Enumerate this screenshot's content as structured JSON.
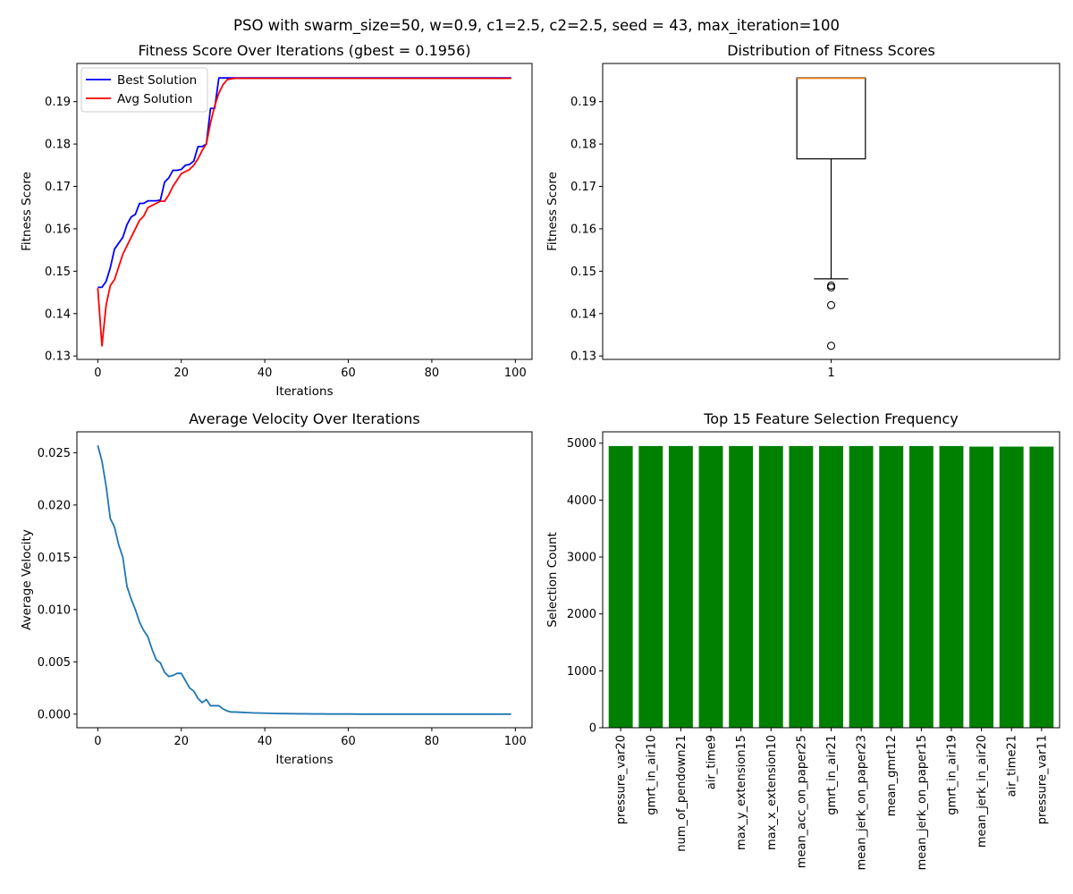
{
  "figure": {
    "suptitle": "PSO with swarm_size=50, w=0.9, c1=2.5, c2=2.5, seed = 43, max_iteration=100"
  },
  "chart_data": [
    {
      "id": "fitness",
      "type": "line",
      "title": "Fitness Score Over Iterations (gbest = 0.1956)",
      "xlabel": "Iterations",
      "ylabel": "Fitness Score",
      "xlim": [
        -5,
        104
      ],
      "ylim": [
        0.1292,
        0.199
      ],
      "xticks": [
        0,
        20,
        40,
        60,
        80,
        100
      ],
      "yticks": [
        0.13,
        0.14,
        0.15,
        0.16,
        0.17,
        0.18,
        0.19
      ],
      "tick_precision": 2,
      "grid": false,
      "legend": "top-left",
      "x": [
        0,
        1,
        2,
        3,
        4,
        5,
        6,
        7,
        8,
        9,
        10,
        11,
        12,
        13,
        14,
        15,
        16,
        17,
        18,
        19,
        20,
        21,
        22,
        23,
        24,
        25,
        26,
        27,
        28,
        29,
        30,
        31,
        32,
        33,
        34,
        35,
        36,
        37,
        38,
        39,
        40,
        41,
        42,
        43,
        44,
        45,
        46,
        47,
        48,
        49,
        50,
        51,
        52,
        53,
        54,
        55,
        56,
        57,
        58,
        59,
        60,
        61,
        62,
        63,
        64,
        65,
        66,
        67,
        68,
        69,
        70,
        71,
        72,
        73,
        74,
        75,
        76,
        77,
        78,
        79,
        80,
        81,
        82,
        83,
        84,
        85,
        86,
        87,
        88,
        89,
        90,
        91,
        92,
        93,
        94,
        95,
        96,
        97,
        98,
        99
      ],
      "series": [
        {
          "name": "Best Solution",
          "color": "#0000ff",
          "values": [
            0.1462,
            0.1462,
            0.1476,
            0.1508,
            0.1552,
            0.1566,
            0.158,
            0.161,
            0.1628,
            0.1634,
            0.166,
            0.166,
            0.1666,
            0.1666,
            0.1666,
            0.1668,
            0.171,
            0.172,
            0.1738,
            0.1738,
            0.174,
            0.175,
            0.1752,
            0.176,
            0.1794,
            0.1794,
            0.18,
            0.1884,
            0.1884,
            0.1956,
            0.1956,
            0.1956,
            0.1956,
            0.1956,
            0.1956,
            0.1956,
            0.1956,
            0.1956,
            0.1956,
            0.1956,
            0.1956,
            0.1956,
            0.1956,
            0.1956,
            0.1956,
            0.1956,
            0.1956,
            0.1956,
            0.1956,
            0.1956,
            0.1956,
            0.1956,
            0.1956,
            0.1956,
            0.1956,
            0.1956,
            0.1956,
            0.1956,
            0.1956,
            0.1956,
            0.1956,
            0.1956,
            0.1956,
            0.1956,
            0.1956,
            0.1956,
            0.1956,
            0.1956,
            0.1956,
            0.1956,
            0.1956,
            0.1956,
            0.1956,
            0.1956,
            0.1956,
            0.1956,
            0.1956,
            0.1956,
            0.1956,
            0.1956,
            0.1956,
            0.1956,
            0.1956,
            0.1956,
            0.1956,
            0.1956,
            0.1956,
            0.1956,
            0.1956,
            0.1956,
            0.1956,
            0.1956,
            0.1956,
            0.1956,
            0.1956,
            0.1956,
            0.1956,
            0.1956,
            0.1956,
            0.1956
          ]
        },
        {
          "name": "Avg Solution",
          "color": "#ff0000",
          "values": [
            0.146,
            0.1324,
            0.142,
            0.1466,
            0.148,
            0.151,
            0.154,
            0.156,
            0.158,
            0.16,
            0.162,
            0.163,
            0.165,
            0.1655,
            0.166,
            0.1665,
            0.1665,
            0.168,
            0.17,
            0.1715,
            0.173,
            0.1735,
            0.174,
            0.175,
            0.1765,
            0.1785,
            0.18,
            0.185,
            0.189,
            0.192,
            0.194,
            0.1952,
            0.1954,
            0.1955,
            0.1955,
            0.1955,
            0.1955,
            0.1955,
            0.1955,
            0.1955,
            0.1955,
            0.1955,
            0.1955,
            0.1955,
            0.1955,
            0.1955,
            0.1955,
            0.1955,
            0.1955,
            0.1955,
            0.1955,
            0.1955,
            0.1955,
            0.1955,
            0.1955,
            0.1955,
            0.1955,
            0.1955,
            0.1955,
            0.1955,
            0.1955,
            0.1955,
            0.1955,
            0.1955,
            0.1955,
            0.1955,
            0.1955,
            0.1955,
            0.1955,
            0.1955,
            0.1955,
            0.1955,
            0.1955,
            0.1955,
            0.1955,
            0.1955,
            0.1955,
            0.1955,
            0.1955,
            0.1955,
            0.1955,
            0.1955,
            0.1955,
            0.1955,
            0.1955,
            0.1955,
            0.1955,
            0.1955,
            0.1955,
            0.1955,
            0.1955,
            0.1955,
            0.1955,
            0.1955,
            0.1955,
            0.1955,
            0.1955,
            0.1955,
            0.1955,
            0.1955
          ]
        }
      ]
    },
    {
      "id": "boxplot",
      "type": "box",
      "title": "Distribution of Fitness Scores",
      "ylabel": "Fitness Score",
      "xlim": [
        0.5,
        1.5
      ],
      "ylim": [
        0.1292,
        0.199
      ],
      "xticks": [
        1
      ],
      "yticks": [
        0.13,
        0.14,
        0.15,
        0.16,
        0.17,
        0.18,
        0.19
      ],
      "tick_precision": 2,
      "grid": false,
      "box": {
        "position": 1,
        "width": 0.08,
        "q1": 0.1765,
        "median": 0.1955,
        "q3": 0.1956,
        "whisker_low": 0.1482,
        "whisker_high": 0.1956,
        "outliers": [
          0.1466,
          0.1462,
          0.142,
          0.1324
        ]
      },
      "colors": {
        "median": "#ff7f0e",
        "box": "#000000"
      }
    },
    {
      "id": "velocity",
      "type": "line",
      "title": "Average Velocity Over Iterations",
      "xlabel": "Iterations",
      "ylabel": "Average Velocity",
      "xlim": [
        -5,
        104
      ],
      "ylim": [
        -0.0013,
        0.027
      ],
      "xticks": [
        0,
        20,
        40,
        60,
        80,
        100
      ],
      "yticks": [
        0.0,
        0.005,
        0.01,
        0.015,
        0.02,
        0.025
      ],
      "tick_precision": 3,
      "grid": false,
      "x": [
        0,
        1,
        2,
        3,
        4,
        5,
        6,
        7,
        8,
        9,
        10,
        11,
        12,
        13,
        14,
        15,
        16,
        17,
        18,
        19,
        20,
        21,
        22,
        23,
        24,
        25,
        26,
        27,
        28,
        29,
        30,
        31,
        32,
        33,
        34,
        35,
        36,
        37,
        38,
        39,
        40,
        41,
        42,
        43,
        44,
        45,
        46,
        47,
        48,
        49,
        50,
        51,
        52,
        53,
        54,
        55,
        56,
        57,
        58,
        59,
        60,
        61,
        62,
        63,
        64,
        65,
        66,
        67,
        68,
        69,
        70,
        71,
        72,
        73,
        74,
        75,
        76,
        77,
        78,
        79,
        80,
        81,
        82,
        83,
        84,
        85,
        86,
        87,
        88,
        89,
        90,
        91,
        92,
        93,
        94,
        95,
        96,
        97,
        98,
        99
      ],
      "series": [
        {
          "name": "",
          "color": "#1f77b4",
          "values": [
            0.0257,
            0.0242,
            0.0218,
            0.0187,
            0.0179,
            0.0162,
            0.015,
            0.0122,
            0.011,
            0.01,
            0.0088,
            0.008,
            0.0074,
            0.0062,
            0.0052,
            0.0049,
            0.004,
            0.0036,
            0.0037,
            0.0039,
            0.0039,
            0.0032,
            0.0025,
            0.0022,
            0.0015,
            0.0011,
            0.0014,
            0.0008,
            0.0008,
            0.0008,
            0.0005,
            0.0003,
            0.0002,
            0.0002,
            0.00018,
            0.00016,
            0.00014,
            0.00012,
            0.00011,
            0.0001,
            9e-05,
            8e-05,
            7e-05,
            6e-05,
            5e-05,
            5e-05,
            4e-05,
            4e-05,
            3e-05,
            3e-05,
            3e-05,
            2e-05,
            2e-05,
            2e-05,
            2e-05,
            1e-05,
            1e-05,
            1e-05,
            1e-05,
            1e-05,
            1e-05,
            1e-05,
            0,
            0,
            0,
            0,
            0,
            0,
            0,
            0,
            0,
            0,
            0,
            0,
            0,
            0,
            0,
            0,
            0,
            0,
            0,
            0,
            0,
            0,
            0,
            0,
            0,
            0,
            0,
            0,
            0,
            0,
            0,
            0,
            0,
            0,
            0,
            0,
            0,
            0
          ]
        }
      ]
    },
    {
      "id": "features",
      "type": "bar",
      "title": "Top 15 Feature Selection Frequency",
      "xlabel": "",
      "ylabel": "Selection Count",
      "ylim": [
        0,
        5200
      ],
      "yticks": [
        0,
        1000,
        2000,
        3000,
        4000,
        5000
      ],
      "tick_precision": 0,
      "grid": false,
      "bar_color": "#008000",
      "categories": [
        "pressure_var20",
        "gmrt_in_air10",
        "num_of_pendown21",
        "air_time9",
        "max_y_extension15",
        "max_x_extension10",
        "mean_acc_on_paper25",
        "gmrt_in_air21",
        "mean_jerk_on_paper23",
        "mean_gmrt12",
        "mean_jerk_on_paper15",
        "gmrt_in_air19",
        "mean_jerk_in_air20",
        "air_time21",
        "pressure_var11"
      ],
      "values": [
        4950,
        4950,
        4950,
        4950,
        4950,
        4950,
        4950,
        4950,
        4950,
        4950,
        4950,
        4950,
        4940,
        4940,
        4940
      ]
    }
  ]
}
